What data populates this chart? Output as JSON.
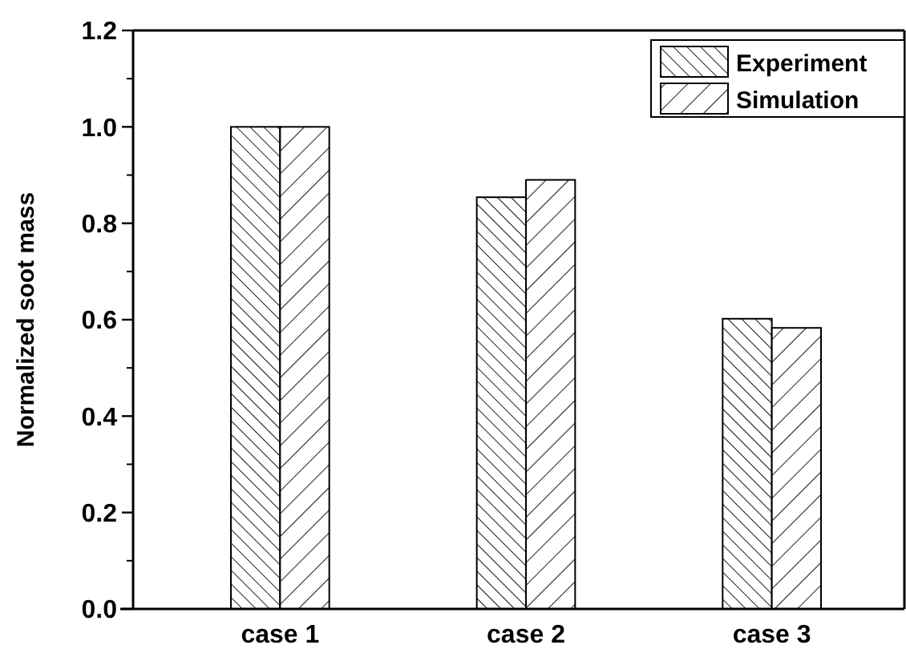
{
  "chart_data": {
    "type": "bar",
    "ylabel": "Normalized soot mass",
    "categories": [
      "case 1",
      "case 2",
      "case 3"
    ],
    "series": [
      {
        "name": "Experiment",
        "color": "#000000",
        "values": [
          1.0,
          0.854,
          0.602
        ]
      },
      {
        "name": "Simulation",
        "color": "#000000",
        "values": [
          1.0,
          0.89,
          0.583
        ]
      }
    ],
    "ylim": [
      0,
      1.2
    ],
    "yticks": [
      {
        "value": 0,
        "label": "0.0"
      },
      {
        "value": 0.2,
        "label": "0.2"
      },
      {
        "value": 0.4,
        "label": "0.4"
      },
      {
        "value": 0.6,
        "label": "0.6"
      },
      {
        "value": 0.8,
        "label": "0.8"
      },
      {
        "value": 1,
        "label": "1.0"
      },
      {
        "value": 1.2,
        "label": "1.2"
      }
    ],
    "legend": "top right"
  }
}
